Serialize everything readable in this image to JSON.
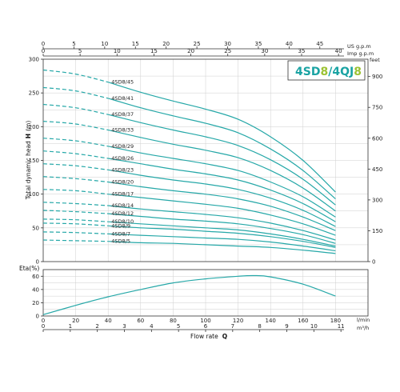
{
  "brand": {
    "part1": "4SD",
    "part2": "8",
    "sep": "/",
    "part3": "4QJ",
    "part4": "8",
    "color_main": "#1aa3a3",
    "color_accent": "#9cc233"
  },
  "top_axes": {
    "us_label": "US g.p.m",
    "imp_label": "Imp g.p.m",
    "us_ticks": [
      "0",
      "5",
      "10",
      "15",
      "20",
      "25",
      "30",
      "35",
      "40",
      "45"
    ],
    "imp_ticks": [
      "0",
      "5",
      "10",
      "15",
      "20",
      "25",
      "30",
      "35",
      "40"
    ]
  },
  "bottom_axes": {
    "lmin_label": "l/min",
    "m3h_label": "m³/h",
    "lmin_ticks": [
      "0",
      "20",
      "40",
      "60",
      "80",
      "100",
      "120",
      "140",
      "160",
      "180"
    ],
    "m3h_ticks": [
      "0",
      "1",
      "2",
      "3",
      "4",
      "5",
      "6",
      "7",
      "8",
      "9",
      "10",
      "11"
    ],
    "xlabel": "Flow rate",
    "xlabel_symbol": "Q"
  },
  "head_chart": {
    "ylabel": "Total dynamic head",
    "ylabel_symbol": "H",
    "ylabel_unit": "(m)",
    "y_ticks": [
      "0",
      "50",
      "100",
      "150",
      "200",
      "250",
      "300"
    ],
    "feet_label": "feet",
    "feet_ticks": [
      "0",
      "150",
      "300",
      "450",
      "600",
      "750",
      "900"
    ]
  },
  "eta_chart": {
    "ylabel": "Eta(%)",
    "y_ticks": [
      "0",
      "20",
      "40",
      "60"
    ]
  },
  "chart_data": [
    {
      "type": "line",
      "xlabel": "Flow rate Q",
      "ylabel": "Total dynamic head H (m)",
      "xunit": "l/min",
      "xlim": [
        0,
        200
      ],
      "ylim": [
        0,
        300
      ],
      "grid": true,
      "series": [
        {
          "name": "4SD8/45",
          "x": [
            0,
            20,
            40,
            60,
            80,
            100,
            120,
            140,
            160,
            180
          ],
          "y": [
            284,
            278,
            266,
            251,
            238,
            226,
            211,
            185,
            150,
            103
          ]
        },
        {
          "name": "4SD8/41",
          "x": [
            0,
            20,
            40,
            60,
            80,
            100,
            120,
            140,
            160,
            180
          ],
          "y": [
            258,
            253,
            242,
            228,
            216,
            205,
            191,
            167,
            135,
            93
          ]
        },
        {
          "name": "4SD8/37",
          "x": [
            0,
            20,
            40,
            60,
            80,
            100,
            120,
            140,
            160,
            180
          ],
          "y": [
            233,
            228,
            218,
            206,
            195,
            185,
            172,
            151,
            122,
            84
          ]
        },
        {
          "name": "4SD8/33",
          "x": [
            0,
            20,
            40,
            60,
            80,
            100,
            120,
            140,
            160,
            180
          ],
          "y": [
            208,
            204,
            195,
            184,
            174,
            165,
            154,
            135,
            109,
            75
          ]
        },
        {
          "name": "4SD8/29",
          "x": [
            0,
            20,
            40,
            60,
            80,
            100,
            120,
            140,
            160,
            180
          ],
          "y": [
            183,
            179,
            171,
            161,
            153,
            145,
            135,
            118,
            96,
            66
          ]
        },
        {
          "name": "4SD8/26",
          "x": [
            0,
            20,
            40,
            60,
            80,
            100,
            120,
            140,
            160,
            180
          ],
          "y": [
            164,
            160,
            153,
            145,
            137,
            130,
            121,
            106,
            86,
            59
          ]
        },
        {
          "name": "4SD8/23",
          "x": [
            0,
            20,
            40,
            60,
            80,
            100,
            120,
            140,
            160,
            180
          ],
          "y": [
            145,
            142,
            136,
            128,
            121,
            115,
            107,
            94,
            76,
            52
          ]
        },
        {
          "name": "4SD8/20",
          "x": [
            0,
            20,
            40,
            60,
            80,
            100,
            120,
            140,
            160,
            180
          ],
          "y": [
            126,
            123,
            118,
            111,
            105,
            100,
            93,
            82,
            66,
            46
          ]
        },
        {
          "name": "4SD8/17",
          "x": [
            0,
            20,
            40,
            60,
            80,
            100,
            120,
            140,
            160,
            180
          ],
          "y": [
            107,
            105,
            100,
            95,
            90,
            85,
            79,
            69,
            56,
            39
          ]
        },
        {
          "name": "4SD8/14",
          "x": [
            0,
            20,
            40,
            60,
            80,
            100,
            120,
            140,
            160,
            180
          ],
          "y": [
            88,
            86,
            83,
            78,
            74,
            70,
            65,
            57,
            46,
            32
          ]
        },
        {
          "name": "4SD8/12",
          "x": [
            0,
            20,
            40,
            60,
            80,
            100,
            120,
            140,
            160,
            180
          ],
          "y": [
            76,
            74,
            71,
            67,
            63,
            60,
            56,
            49,
            40,
            27
          ]
        },
        {
          "name": "4SD8/10",
          "x": [
            0,
            20,
            40,
            60,
            80,
            100,
            120,
            140,
            160,
            180
          ],
          "y": [
            63,
            62,
            59,
            56,
            53,
            50,
            47,
            41,
            33,
            23
          ]
        },
        {
          "name": "4SD8/9",
          "x": [
            0,
            20,
            40,
            60,
            80,
            100,
            120,
            140,
            160,
            180
          ],
          "y": [
            57,
            56,
            53,
            50,
            48,
            45,
            42,
            37,
            30,
            21
          ]
        },
        {
          "name": "4SD8/7",
          "x": [
            0,
            20,
            40,
            60,
            80,
            100,
            120,
            140,
            160,
            180
          ],
          "y": [
            44,
            43,
            41,
            39,
            37,
            35,
            33,
            29,
            23,
            16
          ]
        },
        {
          "name": "4SD8/5",
          "x": [
            0,
            20,
            40,
            60,
            80,
            100,
            120,
            140,
            160,
            180
          ],
          "y": [
            32,
            31,
            30,
            28,
            27,
            25,
            23,
            21,
            17,
            12
          ]
        }
      ]
    },
    {
      "type": "line",
      "xlabel": "Flow rate Q",
      "ylabel": "Eta(%)",
      "xunit": "l/min",
      "xlim": [
        0,
        200
      ],
      "ylim": [
        0,
        70
      ],
      "grid": true,
      "series": [
        {
          "x": [
            0,
            20,
            40,
            60,
            80,
            100,
            120,
            130,
            140,
            160,
            180
          ],
          "y": [
            2,
            16,
            29,
            40,
            50,
            56,
            60,
            61,
            59,
            48,
            30
          ]
        }
      ]
    }
  ]
}
